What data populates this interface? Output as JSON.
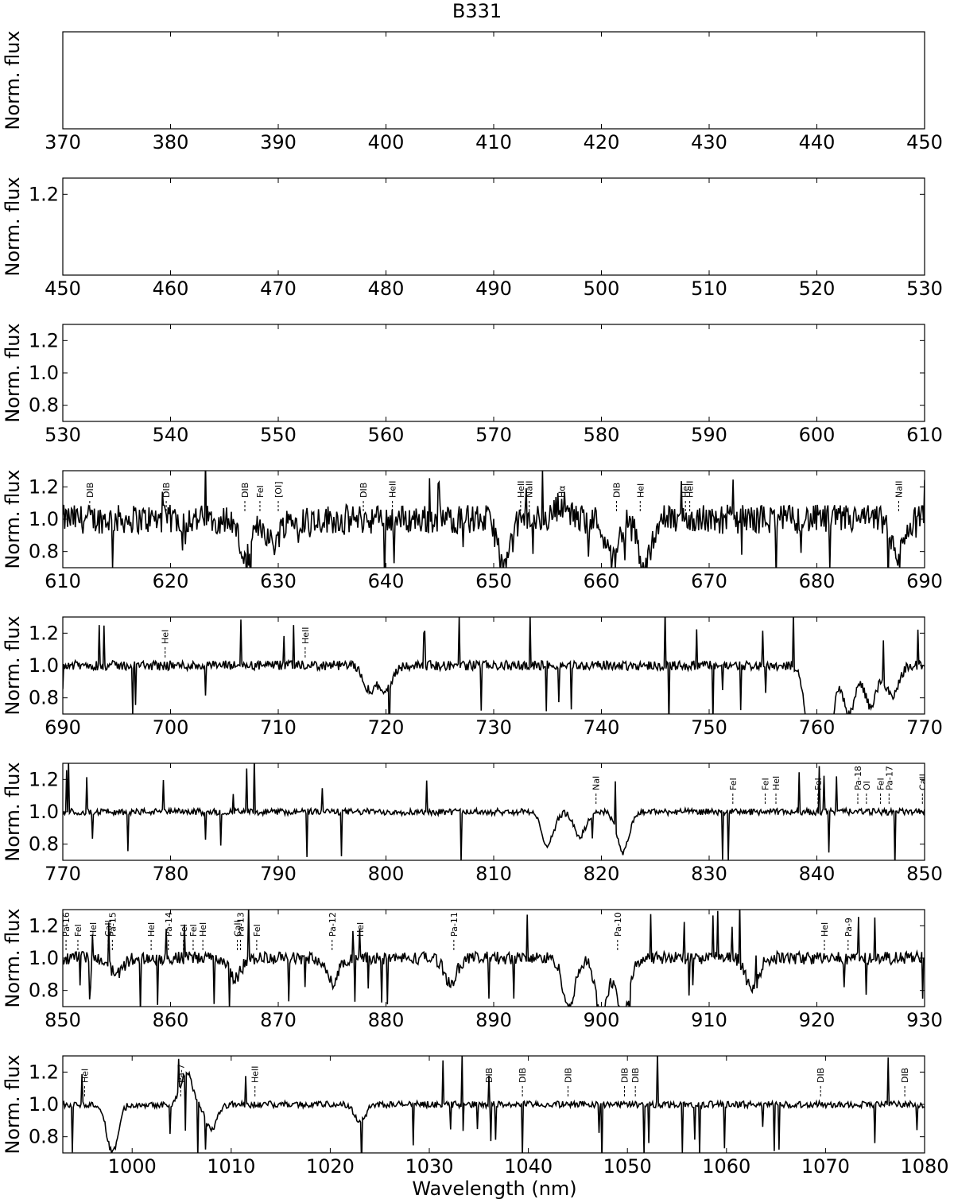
{
  "figure": {
    "title": "B331",
    "xlabel": "Wavelength (nm)",
    "ylabel": "Norm. flux"
  },
  "chart_data": [
    {
      "type": "line",
      "xlim": [
        370,
        450
      ],
      "ylim": [
        0.7,
        1.3
      ],
      "xticks": [
        370,
        380,
        390,
        400,
        410,
        420,
        430,
        440,
        450
      ],
      "yticks": [],
      "spectrum": false,
      "lines": []
    },
    {
      "type": "line",
      "xlim": [
        450,
        530
      ],
      "ylim": [
        0.7,
        1.3
      ],
      "xticks": [
        450,
        460,
        470,
        480,
        490,
        500,
        510,
        520,
        530
      ],
      "yticks": [
        1.2
      ],
      "spectrum": false,
      "lines": []
    },
    {
      "type": "line",
      "xlim": [
        530,
        610
      ],
      "ylim": [
        0.7,
        1.3
      ],
      "xticks": [
        530,
        540,
        550,
        560,
        570,
        580,
        590,
        600,
        610
      ],
      "yticks": [
        0.8,
        1.0,
        1.2
      ],
      "spectrum": false,
      "lines": []
    },
    {
      "type": "line",
      "xlim": [
        610,
        690
      ],
      "ylim": [
        0.7,
        1.3
      ],
      "xticks": [
        610,
        620,
        630,
        640,
        650,
        660,
        670,
        680,
        690
      ],
      "yticks": [
        0.8,
        1.0,
        1.2
      ],
      "spectrum": true,
      "noise": 0.09,
      "dips": [
        [
          627,
          0.25
        ],
        [
          629.5,
          0.15
        ],
        [
          651,
          0.3
        ],
        [
          656.3,
          -0.1
        ],
        [
          661,
          0.25
        ],
        [
          664,
          0.3
        ],
        [
          687.5,
          0.25
        ]
      ],
      "lines": [
        {
          "label": "DIB",
          "x": 612.5
        },
        {
          "label": "DIB",
          "x": 619.6
        },
        {
          "label": "DIB",
          "x": 626.9
        },
        {
          "label": "FeI",
          "x": 628.3
        },
        {
          "label": "[OI]",
          "x": 630.0
        },
        {
          "label": "DIB",
          "x": 637.9
        },
        {
          "label": "HeII",
          "x": 640.6
        },
        {
          "label": "HeII",
          "x": 652.5
        },
        {
          "label": "NaII",
          "x": 653.3
        },
        {
          "label": "Hα",
          "x": 656.3
        },
        {
          "label": "DIB",
          "x": 661.4
        },
        {
          "label": "HeI",
          "x": 663.6
        },
        {
          "label": "HeI",
          "x": 667.8
        },
        {
          "label": "HeII",
          "x": 668.2
        },
        {
          "label": "NaII",
          "x": 687.6
        }
      ]
    },
    {
      "type": "line",
      "xlim": [
        690,
        770
      ],
      "ylim": [
        0.7,
        1.3
      ],
      "xticks": [
        690,
        700,
        710,
        720,
        730,
        740,
        750,
        760,
        770
      ],
      "yticks": [
        0.8,
        1.0,
        1.2
      ],
      "spectrum": true,
      "noise": 0.03,
      "dips": [
        [
          718.5,
          0.15
        ],
        [
          720,
          0.15
        ],
        [
          759.5,
          0.5
        ],
        [
          761,
          0.45
        ],
        [
          763,
          0.3
        ],
        [
          765,
          0.25
        ],
        [
          767,
          0.2
        ]
      ],
      "lines": [
        {
          "label": "HeI",
          "x": 699.5
        },
        {
          "label": "HeII",
          "x": 712.5
        }
      ]
    },
    {
      "type": "line",
      "xlim": [
        770,
        850
      ],
      "ylim": [
        0.7,
        1.3
      ],
      "xticks": [
        770,
        780,
        790,
        800,
        810,
        820,
        830,
        840,
        850
      ],
      "yticks": [
        0.8,
        1.0,
        1.2
      ],
      "spectrum": true,
      "noise": 0.02,
      "dips": [
        [
          815,
          0.2
        ],
        [
          818,
          0.15
        ],
        [
          822,
          0.25
        ]
      ],
      "lines": [
        {
          "label": "NaI",
          "x": 819.5
        },
        {
          "label": "FeI",
          "x": 832.2
        },
        {
          "label": "FeI",
          "x": 835.2
        },
        {
          "label": "HeI",
          "x": 836.2
        },
        {
          "label": "FeI",
          "x": 840.1
        },
        {
          "label": "Pa-18",
          "x": 843.8
        },
        {
          "label": "OI",
          "x": 844.6
        },
        {
          "label": "FeI",
          "x": 845.9
        },
        {
          "label": "Pa-17",
          "x": 846.7
        },
        {
          "label": "CaII",
          "x": 849.8
        }
      ]
    },
    {
      "type": "line",
      "xlim": [
        850,
        930
      ],
      "ylim": [
        0.7,
        1.3
      ],
      "xticks": [
        850,
        860,
        870,
        880,
        890,
        900,
        910,
        920,
        930
      ],
      "yticks": [
        0.8,
        1.0,
        1.2
      ],
      "spectrum": true,
      "noise": 0.04,
      "dips": [
        [
          855,
          0.1
        ],
        [
          866,
          0.12
        ],
        [
          875,
          0.15
        ],
        [
          886,
          0.15
        ],
        [
          897,
          0.3
        ],
        [
          900,
          0.35
        ],
        [
          902,
          0.35
        ],
        [
          914,
          0.2
        ]
      ],
      "lines": [
        {
          "label": "Pa-16",
          "x": 850.3
        },
        {
          "label": "FeI",
          "x": 851.4
        },
        {
          "label": "HeI",
          "x": 852.8
        },
        {
          "label": "CaII",
          "x": 854.2
        },
        {
          "label": "Pa-15",
          "x": 854.6
        },
        {
          "label": "HeI",
          "x": 858.2
        },
        {
          "label": "Pa-14",
          "x": 859.8
        },
        {
          "label": "FeI",
          "x": 861.2
        },
        {
          "label": "FeI",
          "x": 862.1
        },
        {
          "label": "HeI",
          "x": 863.0
        },
        {
          "label": "CaII",
          "x": 866.2
        },
        {
          "label": "Pa-13",
          "x": 866.5
        },
        {
          "label": "FeI",
          "x": 868.0
        },
        {
          "label": "Pa-12",
          "x": 875.0
        },
        {
          "label": "HeI",
          "x": 877.6
        },
        {
          "label": "Pa-11",
          "x": 886.3
        },
        {
          "label": "Pa-10",
          "x": 901.5
        },
        {
          "label": "HeI",
          "x": 920.7
        },
        {
          "label": "Pa-9",
          "x": 922.9
        }
      ]
    },
    {
      "type": "line",
      "xlim": [
        993,
        1080
      ],
      "ylim": [
        0.7,
        1.3
      ],
      "xticks": [
        1000,
        1010,
        1020,
        1030,
        1040,
        1050,
        1060,
        1070,
        1080
      ],
      "yticks": [
        0.8,
        1.0,
        1.2
      ],
      "spectrum": true,
      "noise": 0.02,
      "dips": [
        [
          998,
          0.3
        ],
        [
          1005.5,
          -0.2
        ],
        [
          1008,
          0.15
        ],
        [
          1023,
          0.1
        ]
      ],
      "lines": [
        {
          "label": "HeI",
          "x": 995.2
        },
        {
          "label": "Pa-7",
          "x": 1004.9
        },
        {
          "label": "HeII",
          "x": 1012.4
        },
        {
          "label": "DIB",
          "x": 1036.0
        },
        {
          "label": "DIB",
          "x": 1039.4
        },
        {
          "label": "DIB",
          "x": 1044.0
        },
        {
          "label": "DIB",
          "x": 1049.7
        },
        {
          "label": "DIB",
          "x": 1050.8
        },
        {
          "label": "DIB",
          "x": 1069.5
        },
        {
          "label": "DIB",
          "x": 1078.0
        }
      ]
    }
  ]
}
